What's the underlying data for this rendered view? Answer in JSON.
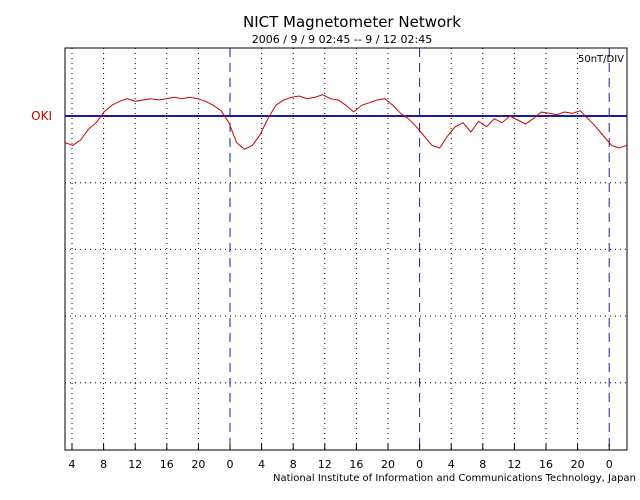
{
  "chart_data": {
    "type": "line",
    "title": "NICT Magnetometer Network",
    "subtitle": "2006 / 9 / 9   02:45 -- 9 / 12  02:45",
    "station": "OKI",
    "scale_label": "50nT/DIV",
    "credit": "National Institute of Information and Communications Technology, Japan",
    "x_tick_labels": [
      "4",
      "8",
      "12",
      "16",
      "20",
      "0",
      "4",
      "8",
      "12",
      "16",
      "20",
      "0",
      "4",
      "8",
      "12",
      "16",
      "20",
      "0"
    ],
    "x_range_hours": [
      0,
      72
    ],
    "y_range_nT": [
      -200,
      50
    ],
    "grid": true,
    "series": [
      {
        "color": "#cc0000",
        "x": [
          0,
          1,
          2,
          3,
          4,
          5,
          6,
          7,
          8,
          9,
          10,
          11,
          12,
          13,
          14,
          15,
          16,
          17,
          18,
          19,
          20,
          21,
          22,
          23,
          24,
          25,
          26,
          27,
          28,
          29,
          30,
          31,
          32,
          33,
          34,
          35,
          36,
          37,
          38,
          39,
          40,
          41,
          42,
          43,
          44,
          45,
          46,
          47,
          48,
          49,
          50,
          51,
          52,
          53,
          54,
          55,
          56,
          57,
          58,
          59,
          60,
          61,
          62,
          63,
          64,
          65,
          66,
          67,
          68,
          69,
          70,
          71,
          72
        ],
        "y": [
          -20,
          -22,
          -18,
          -10,
          -5,
          3,
          8,
          11,
          13,
          11,
          12,
          13,
          12,
          13,
          14,
          13,
          14,
          13,
          11,
          8,
          4,
          -5,
          -20,
          -25,
          -22,
          -14,
          -2,
          8,
          12,
          14,
          15,
          13,
          14,
          16,
          13,
          12,
          8,
          3,
          8,
          10,
          12,
          13,
          8,
          2,
          -2,
          -8,
          -15,
          -22,
          -24,
          -15,
          -8,
          -5,
          -12,
          -4,
          -8,
          -2,
          -5,
          0,
          -3,
          -6,
          -2,
          3,
          2,
          1,
          3,
          2,
          4,
          -2,
          -8,
          -15,
          -22,
          -24,
          -22
        ]
      }
    ]
  }
}
